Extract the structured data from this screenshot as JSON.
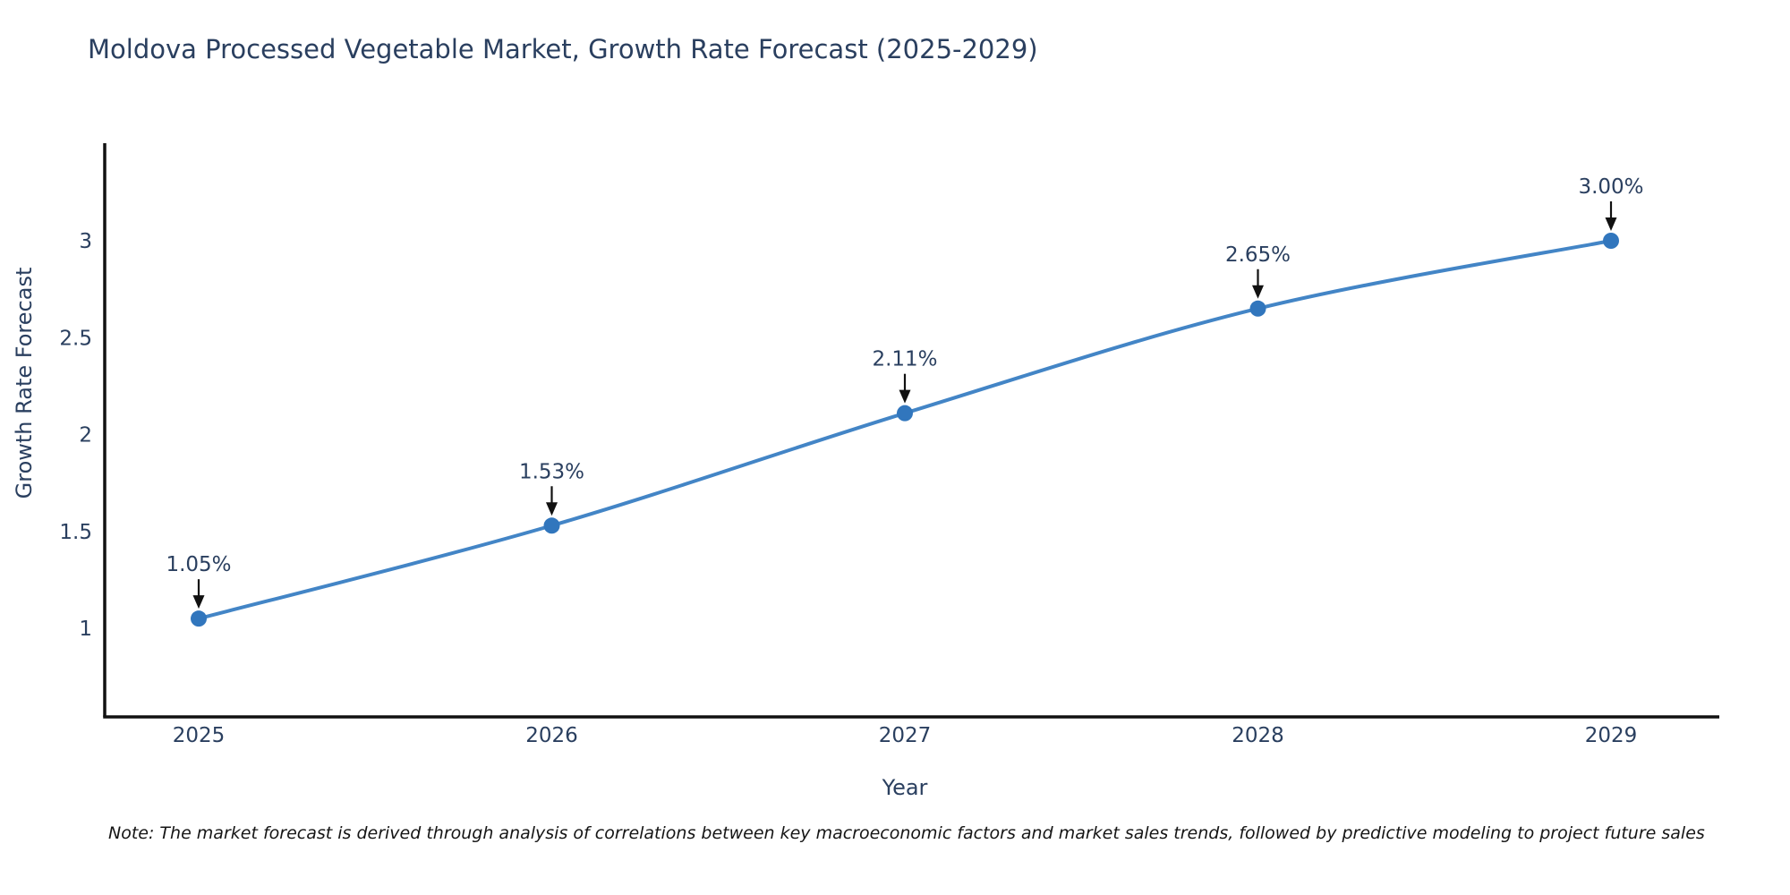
{
  "page": {
    "note": "Note: The market forecast is derived through analysis of correlations between key macroeconomic factors and market sales trends, followed by predictive modeling to project future sales"
  },
  "chart_data": {
    "type": "line",
    "title": "Moldova Processed Vegetable Market, Growth Rate Forecast (2025-2029)",
    "x": [
      "2025",
      "2026",
      "2027",
      "2028",
      "2029"
    ],
    "series": [
      {
        "name": "Growth Rate Forecast",
        "values": [
          1.05,
          1.53,
          2.11,
          2.65,
          3.0
        ]
      }
    ],
    "point_labels": [
      "1.05%",
      "1.53%",
      "2.11%",
      "2.65%",
      "3.00%"
    ],
    "xlabel": "Year",
    "ylabel": "Growth Rate Forecast",
    "yticks": [
      "1",
      "1.5",
      "2",
      "2.5",
      "3"
    ],
    "ytick_values": [
      1,
      1.5,
      2,
      2.5,
      3
    ],
    "ylim": [
      0.54,
      3.5
    ],
    "grid": false,
    "legend": "none",
    "annotation_arrows": true,
    "line_shape": "spline",
    "colors": {
      "line": "#4385c6",
      "marker": "#3176bd",
      "text": "#2a3f5f",
      "axis": "#111111",
      "arrow": "#111111",
      "note_text": "#151515",
      "background": "#ffffff"
    }
  }
}
